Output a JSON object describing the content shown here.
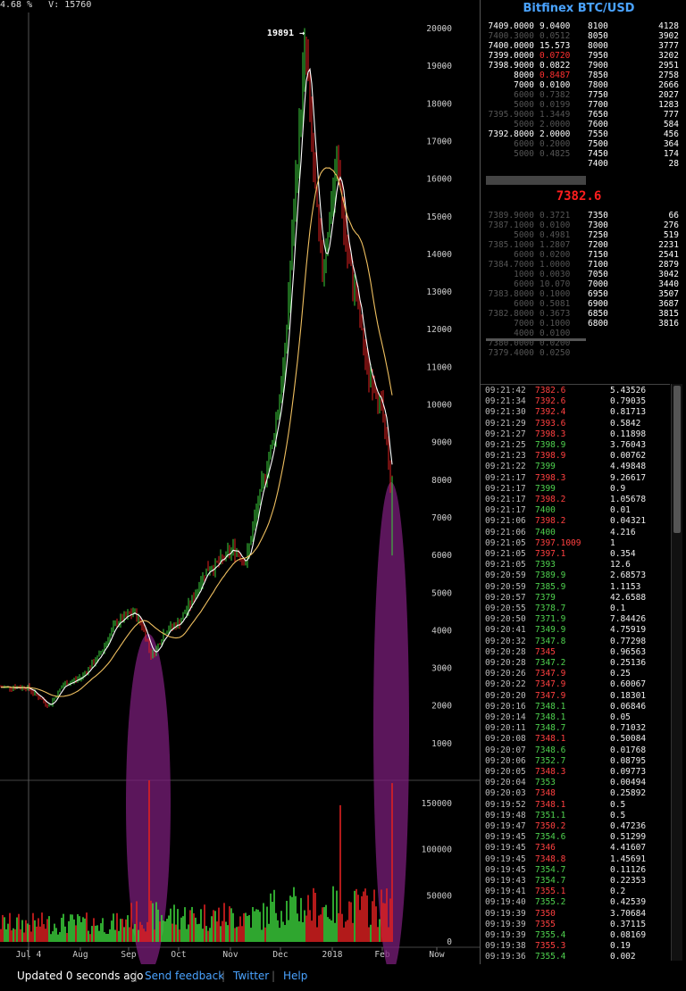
{
  "top_stats": "4.68 %   V: 15760",
  "orderbook": {
    "title": "Bitfinex BTC/USD",
    "last_price": "7382.6",
    "asks_left": [
      {
        "price": "7409.0000",
        "amount": "9.0400",
        "dim": false
      },
      {
        "price": "7400.3000",
        "amount": "0.0512",
        "dim": true
      },
      {
        "price": "7400.0000",
        "amount": "15.573",
        "dim": false
      },
      {
        "price": "7399.0000",
        "amount": "0.0720",
        "dim": false,
        "amt_red": true
      },
      {
        "price": "7398.9000",
        "amount": "0.0822",
        "dim": false
      },
      {
        "price": "8000",
        "amount": "0.8487",
        "dim": false,
        "amt_red": true
      },
      {
        "price": "7000",
        "amount": "0.0100",
        "dim": false
      },
      {
        "price": "6000",
        "amount": "0.7382",
        "dim": true
      },
      {
        "price": "5000",
        "amount": "0.0199",
        "dim": true
      },
      {
        "price": "7395.9000",
        "amount": "1.3449",
        "dim": true
      },
      {
        "price": "5000",
        "amount": "2.0000",
        "dim": true
      },
      {
        "price": "7392.8000",
        "amount": "2.0000",
        "dim": false
      },
      {
        "price": "6000",
        "amount": "0.2000",
        "dim": true
      },
      {
        "price": "5000",
        "amount": "0.4825",
        "dim": true
      }
    ],
    "asks_right": [
      [
        "8100",
        "4128"
      ],
      [
        "8050",
        "3902"
      ],
      [
        "8000",
        "3777"
      ],
      [
        "7950",
        "3202"
      ],
      [
        "7900",
        "2951"
      ],
      [
        "7850",
        "2758"
      ],
      [
        "7800",
        "2666"
      ],
      [
        "7750",
        "2027"
      ],
      [
        "7700",
        "1283"
      ],
      [
        "7650",
        "777"
      ],
      [
        "7600",
        "584"
      ],
      [
        "7550",
        "456"
      ],
      [
        "7500",
        "364"
      ],
      [
        "7450",
        "174"
      ],
      [
        "7400",
        "28"
      ]
    ],
    "bids_left": [
      [
        "7389.9000",
        "0.3721"
      ],
      [
        "7387.1000",
        "0.0100"
      ],
      [
        "5000",
        "0.4981"
      ],
      [
        "7385.1000",
        "1.2807"
      ],
      [
        "6000",
        "0.0200"
      ],
      [
        "7384.7000",
        "1.0000"
      ],
      [
        "1000",
        "0.0030"
      ],
      [
        "6000",
        "10.070"
      ],
      [
        "7383.8000",
        "0.1000"
      ],
      [
        "6000",
        "0.5081"
      ],
      [
        "7382.8000",
        "0.3673"
      ],
      [
        "7000",
        "0.1000"
      ],
      [
        "4000",
        "0.0100"
      ],
      [
        "7380.0000",
        "0.0200"
      ],
      [
        "7379.4000",
        "0.0250"
      ]
    ],
    "bids_right": [
      [
        "7350",
        "66"
      ],
      [
        "7300",
        "276"
      ],
      [
        "7250",
        "519"
      ],
      [
        "7200",
        "2231"
      ],
      [
        "7150",
        "2541"
      ],
      [
        "7100",
        "2879"
      ],
      [
        "7050",
        "3042"
      ],
      [
        "7000",
        "3440"
      ],
      [
        "6950",
        "3507"
      ],
      [
        "6900",
        "3687"
      ],
      [
        "6850",
        "3815"
      ],
      [
        "6800",
        "3816"
      ]
    ]
  },
  "trades": [
    {
      "time": "09:21:42",
      "price": "7382.6",
      "amount": "5.43526",
      "side": "sell"
    },
    {
      "time": "09:21:34",
      "price": "7392.6",
      "amount": "0.79035",
      "side": "sell"
    },
    {
      "time": "09:21:30",
      "price": "7392.4",
      "amount": "0.81713",
      "side": "sell"
    },
    {
      "time": "09:21:29",
      "price": "7393.6",
      "amount": "0.5842",
      "side": "sell"
    },
    {
      "time": "09:21:27",
      "price": "7398.3",
      "amount": "0.11898",
      "side": "sell"
    },
    {
      "time": "09:21:25",
      "price": "7398.9",
      "amount": "3.76043",
      "side": "buy"
    },
    {
      "time": "09:21:23",
      "price": "7398.9",
      "amount": "0.00762",
      "side": "sell"
    },
    {
      "time": "09:21:22",
      "price": "7399",
      "amount": "4.49848",
      "side": "buy"
    },
    {
      "time": "09:21:17",
      "price": "7398.3",
      "amount": "9.26617",
      "side": "sell"
    },
    {
      "time": "09:21:17",
      "price": "7399",
      "amount": "0.9",
      "side": "buy"
    },
    {
      "time": "09:21:17",
      "price": "7398.2",
      "amount": "1.05678",
      "side": "sell"
    },
    {
      "time": "09:21:17",
      "price": "7400",
      "amount": "0.01",
      "side": "buy"
    },
    {
      "time": "09:21:06",
      "price": "7398.2",
      "amount": "0.04321",
      "side": "sell"
    },
    {
      "time": "09:21:06",
      "price": "7400",
      "amount": "4.216",
      "side": "buy"
    },
    {
      "time": "09:21:05",
      "price": "7397.1009",
      "amount": "1",
      "side": "sell"
    },
    {
      "time": "09:21:05",
      "price": "7397.1",
      "amount": "0.354",
      "side": "sell"
    },
    {
      "time": "09:21:05",
      "price": "7393",
      "amount": "12.6",
      "side": "buy"
    },
    {
      "time": "09:20:59",
      "price": "7389.9",
      "amount": "2.68573",
      "side": "buy"
    },
    {
      "time": "09:20:59",
      "price": "7385.9",
      "amount": "1.1153",
      "side": "buy"
    },
    {
      "time": "09:20:57",
      "price": "7379",
      "amount": "42.6588",
      "side": "buy"
    },
    {
      "time": "09:20:55",
      "price": "7378.7",
      "amount": "0.1",
      "side": "buy"
    },
    {
      "time": "09:20:50",
      "price": "7371.9",
      "amount": "7.84426",
      "side": "buy"
    },
    {
      "time": "09:20:41",
      "price": "7349.9",
      "amount": "4.75919",
      "side": "buy"
    },
    {
      "time": "09:20:32",
      "price": "7347.8",
      "amount": "0.77298",
      "side": "buy"
    },
    {
      "time": "09:20:28",
      "price": "7345",
      "amount": "0.96563",
      "side": "sell"
    },
    {
      "time": "09:20:28",
      "price": "7347.2",
      "amount": "0.25136",
      "side": "buy"
    },
    {
      "time": "09:20:26",
      "price": "7347.9",
      "amount": "0.25",
      "side": "sell"
    },
    {
      "time": "09:20:22",
      "price": "7347.9",
      "amount": "0.60067",
      "side": "sell"
    },
    {
      "time": "09:20:20",
      "price": "7347.9",
      "amount": "0.18301",
      "side": "sell"
    },
    {
      "time": "09:20:16",
      "price": "7348.1",
      "amount": "0.06846",
      "side": "buy"
    },
    {
      "time": "09:20:14",
      "price": "7348.1",
      "amount": "0.05",
      "side": "buy"
    },
    {
      "time": "09:20:11",
      "price": "7348.7",
      "amount": "0.71032",
      "side": "buy"
    },
    {
      "time": "09:20:08",
      "price": "7348.1",
      "amount": "0.50084",
      "side": "sell"
    },
    {
      "time": "09:20:07",
      "price": "7348.6",
      "amount": "0.01768",
      "side": "buy"
    },
    {
      "time": "09:20:06",
      "price": "7352.7",
      "amount": "0.08795",
      "side": "buy"
    },
    {
      "time": "09:20:05",
      "price": "7348.3",
      "amount": "0.09773",
      "side": "sell"
    },
    {
      "time": "09:20:04",
      "price": "7353",
      "amount": "0.00494",
      "side": "buy"
    },
    {
      "time": "09:20:03",
      "price": "7348",
      "amount": "0.25892",
      "side": "sell"
    },
    {
      "time": "09:19:52",
      "price": "7348.1",
      "amount": "0.5",
      "side": "sell"
    },
    {
      "time": "09:19:48",
      "price": "7351.1",
      "amount": "0.5",
      "side": "buy"
    },
    {
      "time": "09:19:47",
      "price": "7350.2",
      "amount": "0.47236",
      "side": "sell"
    },
    {
      "time": "09:19:45",
      "price": "7354.6",
      "amount": "0.51299",
      "side": "buy"
    },
    {
      "time": "09:19:45",
      "price": "7346",
      "amount": "4.41607",
      "side": "sell"
    },
    {
      "time": "09:19:45",
      "price": "7348.8",
      "amount": "1.45691",
      "side": "sell"
    },
    {
      "time": "09:19:45",
      "price": "7354.7",
      "amount": "0.11126",
      "side": "buy"
    },
    {
      "time": "09:19:43",
      "price": "7354.7",
      "amount": "0.22353",
      "side": "buy"
    },
    {
      "time": "09:19:41",
      "price": "7355.1",
      "amount": "0.2",
      "side": "sell"
    },
    {
      "time": "09:19:40",
      "price": "7355.2",
      "amount": "0.42539",
      "side": "buy"
    },
    {
      "time": "09:19:39",
      "price": "7350",
      "amount": "3.70684",
      "side": "sell"
    },
    {
      "time": "09:19:39",
      "price": "7355",
      "amount": "0.37115",
      "side": "sell"
    },
    {
      "time": "09:19:39",
      "price": "7355.4",
      "amount": "0.08169",
      "side": "buy"
    },
    {
      "time": "09:19:38",
      "price": "7355.3",
      "amount": "0.19",
      "side": "sell"
    },
    {
      "time": "09:19:36",
      "price": "7355.4",
      "amount": "0.002",
      "side": "buy"
    }
  ],
  "chart": {
    "peak_label": "19891 →",
    "price_ticks": [
      "20000",
      "19000",
      "18000",
      "17000",
      "16000",
      "15000",
      "14000",
      "13000",
      "12000",
      "11000",
      "10000",
      "9000",
      "8000",
      "7000",
      "6000",
      "5000",
      "4000",
      "3000",
      "2000",
      "1000"
    ],
    "price_tick_values": [
      20000,
      19000,
      18000,
      17000,
      16000,
      15000,
      14000,
      13000,
      12000,
      11000,
      10000,
      9000,
      8000,
      7000,
      6000,
      5000,
      4000,
      3000,
      2000,
      1000
    ],
    "volume_ticks": [
      "150000",
      "100000",
      "50000",
      "0"
    ],
    "volume_tick_values": [
      150000,
      100000,
      50000,
      0
    ],
    "x_labels": [
      "Jul 4",
      "Aug",
      "Sep",
      "Oct",
      "Nov",
      "Dec",
      "2018",
      "Feb",
      "Now"
    ],
    "colors": {
      "up": "#3bd13b",
      "down": "#e02020",
      "sma_fast": "#ffffff",
      "sma_slow": "#f0c060",
      "highlight": "#7a1e7a",
      "grid": "#333333"
    }
  },
  "chart_data": {
    "type": "line",
    "title": "",
    "xlabel": "",
    "ylabel": "",
    "x": [
      "Jul 4",
      "Aug",
      "Sep",
      "Oct",
      "Nov",
      "Dec",
      "2018",
      "Feb",
      "Now"
    ],
    "series": [
      {
        "values": [
          2500,
          2700,
          4500,
          4100,
          6500,
          11000,
          15000,
          10000,
          7400
        ]
      }
    ],
    "ylim": [
      0,
      20000
    ],
    "volume_ylim": [
      0,
      175000
    ],
    "annotations": [
      "19891"
    ],
    "grid": false
  },
  "footer": {
    "updated": "Updated 0 seconds ago",
    "feedback": "Send feedback",
    "twitter": "Twitter",
    "help": "Help"
  }
}
